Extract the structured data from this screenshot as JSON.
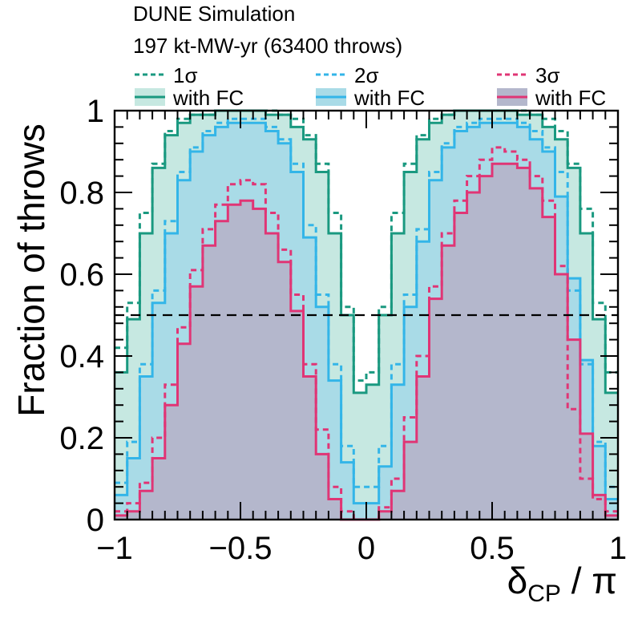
{
  "chart_data": {
    "type": "histogram-step",
    "title": "DUNE Simulation",
    "subtitle": "197 kt-MW-yr (63400 throws)",
    "xlabel_symbol": "δ",
    "xlabel_subscript": "CP",
    "xlabel_tail": " / π",
    "ylabel": "Fraction of throws",
    "xlim": [
      -1,
      1
    ],
    "ylim": [
      0,
      1
    ],
    "x_ticks": [
      -1,
      -0.5,
      0,
      0.5,
      1
    ],
    "x_tick_labels": [
      "−1",
      "−0.5",
      "0",
      "0.5",
      "1"
    ],
    "y_ticks": [
      0,
      0.2,
      0.4,
      0.6,
      0.8,
      1
    ],
    "y_tick_labels": [
      "0",
      "0.2",
      "0.4",
      "0.6",
      "0.8",
      "1"
    ],
    "reference_line": {
      "y": 0.5,
      "style": "dashed"
    },
    "legend": {
      "placement": "top",
      "entries": [
        {
          "label": "1σ",
          "series": "1sigma",
          "style": "dashed"
        },
        {
          "label": "2σ",
          "series": "2sigma",
          "style": "dashed"
        },
        {
          "label": "3σ",
          "series": "3sigma",
          "style": "dashed"
        },
        {
          "label": "with FC",
          "series": "1sigma_fc",
          "style": "solid-filled"
        },
        {
          "label": "with FC",
          "series": "2sigma_fc",
          "style": "solid-filled"
        },
        {
          "label": "with FC",
          "series": "3sigma_fc",
          "style": "solid-filled"
        }
      ]
    },
    "bin_edges": [
      -1,
      -0.95,
      -0.9,
      -0.85,
      -0.8,
      -0.75,
      -0.7,
      -0.65,
      -0.6,
      -0.55,
      -0.5,
      -0.45,
      -0.4,
      -0.35,
      -0.3,
      -0.25,
      -0.2,
      -0.15,
      -0.1,
      -0.05,
      0,
      0.05,
      0.1,
      0.15,
      0.2,
      0.25,
      0.3,
      0.35,
      0.4,
      0.45,
      0.5,
      0.55,
      0.6,
      0.65,
      0.7,
      0.75,
      0.8,
      0.85,
      0.9,
      0.95,
      1
    ],
    "series": [
      {
        "name": "1σ with FC",
        "key": "1sigma_fc",
        "color": "#1a9980",
        "fill": "#c6e8e1",
        "dashed": false,
        "values": [
          0.36,
          0.49,
          0.7,
          0.86,
          0.94,
          0.97,
          0.99,
          0.99,
          1.0,
          1.0,
          1.0,
          1.0,
          0.99,
          0.99,
          0.96,
          0.93,
          0.85,
          0.7,
          0.5,
          0.31,
          0.33,
          0.5,
          0.7,
          0.85,
          0.93,
          0.97,
          0.99,
          1.0,
          1.0,
          1.0,
          1.0,
          1.0,
          0.99,
          0.99,
          0.96,
          0.93,
          0.86,
          0.7,
          0.49,
          0.31
        ]
      },
      {
        "name": "1σ",
        "key": "1sigma",
        "color": "#1a9980",
        "dashed": true,
        "values": [
          0.42,
          0.53,
          0.75,
          0.87,
          0.95,
          0.98,
          0.99,
          0.99,
          1.0,
          1.0,
          1.0,
          1.0,
          1.0,
          0.99,
          0.98,
          0.94,
          0.87,
          0.75,
          0.52,
          0.34,
          0.36,
          0.52,
          0.75,
          0.87,
          0.94,
          0.98,
          0.99,
          1.0,
          1.0,
          1.0,
          1.0,
          1.0,
          1.0,
          0.99,
          0.98,
          0.95,
          0.87,
          0.76,
          0.53,
          0.36
        ]
      },
      {
        "name": "2σ with FC",
        "key": "2sigma_fc",
        "color": "#33b5e8",
        "fill": "#a9dbe7",
        "dashed": false,
        "values": [
          0.06,
          0.15,
          0.35,
          0.53,
          0.7,
          0.83,
          0.9,
          0.94,
          0.96,
          0.97,
          0.97,
          0.97,
          0.95,
          0.92,
          0.85,
          0.69,
          0.52,
          0.34,
          0.14,
          0.04,
          0.04,
          0.13,
          0.33,
          0.52,
          0.68,
          0.83,
          0.91,
          0.95,
          0.96,
          0.97,
          0.97,
          0.97,
          0.96,
          0.93,
          0.9,
          0.79,
          0.59,
          0.39,
          0.18,
          0.05
        ]
      },
      {
        "name": "2σ",
        "key": "2sigma",
        "color": "#33b5e8",
        "dashed": true,
        "values": [
          0.09,
          0.19,
          0.38,
          0.56,
          0.73,
          0.85,
          0.91,
          0.95,
          0.97,
          0.98,
          0.98,
          0.98,
          0.96,
          0.93,
          0.87,
          0.72,
          0.55,
          0.38,
          0.18,
          0.08,
          0.08,
          0.18,
          0.38,
          0.55,
          0.71,
          0.85,
          0.92,
          0.96,
          0.97,
          0.98,
          0.98,
          0.98,
          0.97,
          0.95,
          0.91,
          0.85,
          0.56,
          0.38,
          0.19,
          0.08
        ]
      },
      {
        "name": "3σ with FC",
        "key": "3sigma_fc",
        "color": "#e03575",
        "fill": "#b4b7cc",
        "dashed": false,
        "values": [
          0.01,
          0.02,
          0.07,
          0.15,
          0.28,
          0.43,
          0.57,
          0.67,
          0.73,
          0.77,
          0.78,
          0.76,
          0.7,
          0.63,
          0.51,
          0.35,
          0.16,
          0.05,
          0.0,
          0.0,
          0.0,
          0.02,
          0.07,
          0.19,
          0.35,
          0.54,
          0.67,
          0.75,
          0.8,
          0.84,
          0.87,
          0.87,
          0.86,
          0.81,
          0.74,
          0.6,
          0.44,
          0.21,
          0.06,
          0.01
        ]
      },
      {
        "name": "3σ",
        "key": "3sigma",
        "color": "#e03575",
        "dashed": true,
        "values": [
          0.02,
          0.04,
          0.09,
          0.2,
          0.33,
          0.47,
          0.61,
          0.71,
          0.77,
          0.82,
          0.83,
          0.82,
          0.75,
          0.66,
          0.55,
          0.38,
          0.22,
          0.08,
          0.02,
          0.0,
          0.0,
          0.03,
          0.1,
          0.25,
          0.4,
          0.57,
          0.7,
          0.78,
          0.84,
          0.88,
          0.91,
          0.9,
          0.88,
          0.84,
          0.78,
          0.62,
          0.27,
          0.1,
          0.05,
          0.02
        ]
      }
    ]
  }
}
